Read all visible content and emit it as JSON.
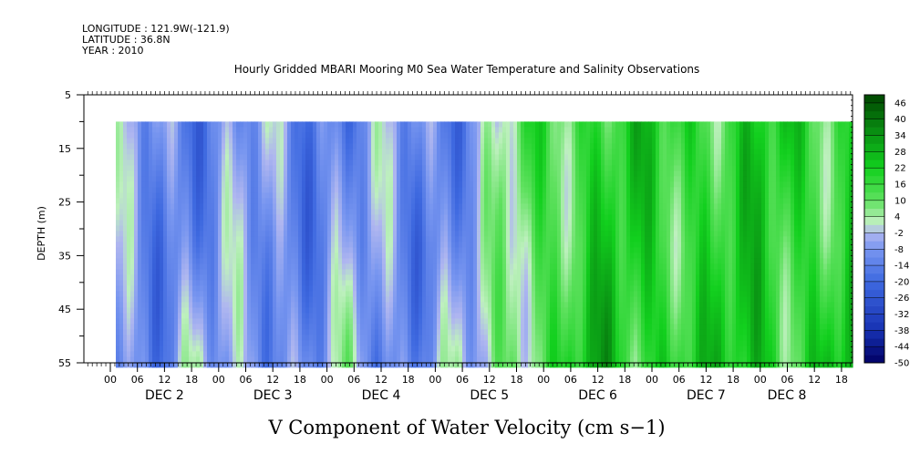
{
  "header": {
    "longitude": "LONGITUDE : 121.9W(-121.9)",
    "latitude": "LATITUDE : 36.8N",
    "year": "YEAR : 2010"
  },
  "chart_data": {
    "type": "heatmap",
    "title": "Hourly Gridded MBARI Mooring M0 Sea Water Temperature and Salinity Observations",
    "xlabel": "V Component of Water Velocity (cm s−1)",
    "ylabel": "DEPTH (m)",
    "ylim": [
      55,
      5
    ],
    "y_ticks": [
      "5",
      "15",
      "25",
      "35",
      "45",
      "55"
    ],
    "x_hour_ticks": [
      "00",
      "06",
      "12",
      "18",
      "00",
      "06",
      "12",
      "18",
      "00",
      "06",
      "12",
      "18",
      "00",
      "06",
      "12",
      "18",
      "00",
      "06",
      "12",
      "18",
      "00",
      "06",
      "12",
      "18",
      "00",
      "06",
      "12",
      "18"
    ],
    "x_day_labels": [
      "DEC  2",
      "DEC  3",
      "DEC  4",
      "DEC  5",
      "DEC  6",
      "DEC  7",
      "DEC  8"
    ],
    "data_depth_range": [
      10,
      55
    ],
    "colorbar": {
      "labels": [
        "46",
        "40",
        "34",
        "28",
        "22",
        "16",
        "10",
        "4",
        "-2",
        "-8",
        "-14",
        "-20",
        "-26",
        "-32",
        "-38",
        "-44",
        "-50"
      ],
      "min": -50,
      "max": 49
    }
  }
}
